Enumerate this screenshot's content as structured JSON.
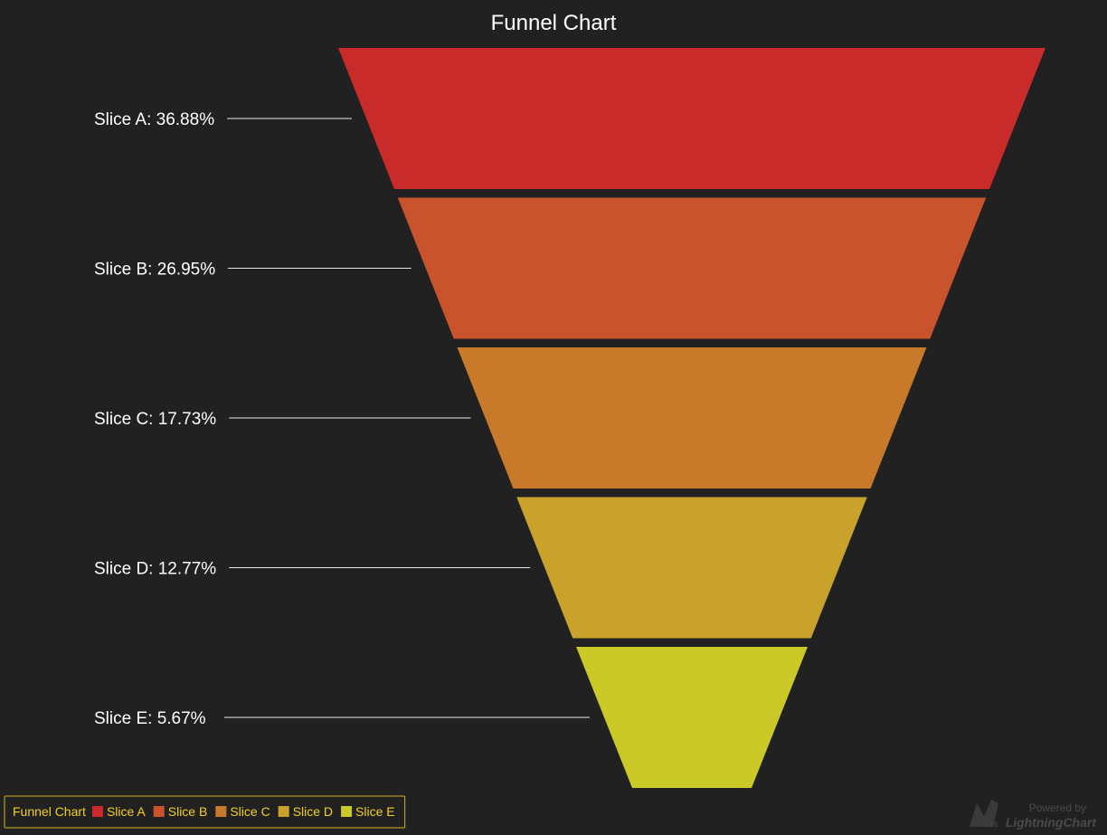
{
  "chart_data": {
    "type": "funnel",
    "title": "Funnel Chart",
    "slices": [
      {
        "name": "Slice A",
        "label": "Slice A: 36.88%",
        "value": 36.88,
        "color": "#c92a2a"
      },
      {
        "name": "Slice B",
        "label": "Slice B: 26.95%",
        "value": 26.95,
        "color": "#c8532d"
      },
      {
        "name": "Slice C",
        "label": "Slice C: 17.73%",
        "value": 17.73,
        "color": "#c8792a"
      },
      {
        "name": "Slice D",
        "label": "Slice D: 12.77%",
        "value": 12.77,
        "color": "#c9a22c"
      },
      {
        "name": "Slice E",
        "label": "Slice E: 5.67%",
        "value": 5.67,
        "color": "#cbc927"
      }
    ],
    "background": "#212121",
    "legend": {
      "position": "bottom-left",
      "title": "Funnel Chart",
      "text_color": "#f5d020",
      "border_color": "#d4b21c"
    }
  },
  "watermark": {
    "line1": "Powered by",
    "line2": "LightningChart",
    "badge": "JS"
  }
}
